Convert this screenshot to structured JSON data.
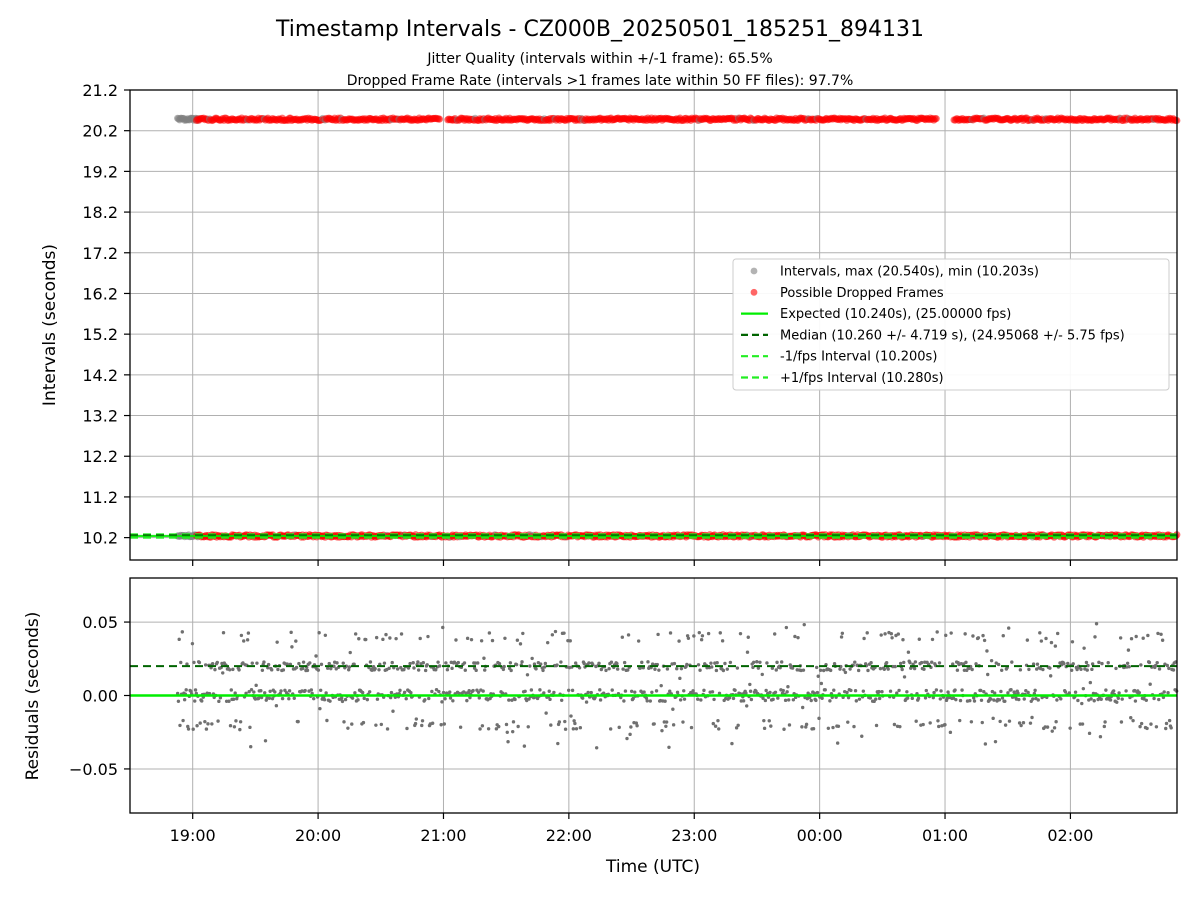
{
  "colors": {
    "interval_points": "#808080",
    "dropped_points": "#ff0000",
    "expected_line": "#00ee00",
    "median_line": "#006400",
    "fps_interval_lines": "#22ee22",
    "residual_points": "#707070",
    "grid": "#b0b0b0"
  },
  "chart_data": [
    {
      "type": "scatter",
      "title": "Timestamp Intervals - CZ000B_20250501_185251_894131",
      "subtitle_1": "Jitter Quality (intervals within +/-1 frame): 65.5%",
      "subtitle_2": "Dropped Frame Rate (intervals >1 frames late within 50 FF files): 97.7%",
      "xlabel": "",
      "ylabel": "Intervals (seconds)",
      "ylim": [
        9.65,
        21.2
      ],
      "yticks": [
        "10.2",
        "11.2",
        "12.2",
        "13.2",
        "14.2",
        "15.2",
        "16.2",
        "17.2",
        "18.2",
        "19.2",
        "20.2",
        "21.2"
      ],
      "xlim_hours": [
        18.5,
        26.85
      ],
      "grid": true,
      "legend_position": "center-right",
      "legend": [
        {
          "label": "Intervals, max (20.540s), min (10.203s)",
          "kind": "marker",
          "color": "#808080"
        },
        {
          "label": "Possible Dropped Frames",
          "kind": "marker",
          "color": "#ff0000"
        },
        {
          "label": "Expected (10.240s), (25.00000 fps)",
          "kind": "solid",
          "color": "#00ee00"
        },
        {
          "label": "Median (10.260 +/- 4.719 s), (24.95068 +/- 5.75 fps)",
          "kind": "dashed",
          "color": "#006400"
        },
        {
          "label": "-1/fps Interval (10.200s)",
          "kind": "dashed",
          "color": "#22ee22"
        },
        {
          "label": "+1/fps Interval (10.280s)",
          "kind": "dashed",
          "color": "#22ee22"
        }
      ],
      "series": [
        {
          "name": "Intervals, max (20.540s), min (10.203s)",
          "start_hour": 18.88,
          "end_hour": 26.85,
          "levels": [
            10.24,
            20.48
          ],
          "color": "#808080"
        },
        {
          "name": "Possible Dropped Frames",
          "start_hour": 19.03,
          "end_hour": 26.85,
          "levels": [
            10.24,
            20.48
          ],
          "color": "#ff0000"
        }
      ],
      "reference_lines": {
        "expected": 10.24,
        "median": 10.26,
        "minus_1_fps": 10.2,
        "plus_1_fps": 10.28
      }
    },
    {
      "type": "scatter",
      "xlabel": "Time (UTC)",
      "ylabel": "Residuals (seconds)",
      "ylim": [
        -0.08,
        0.08
      ],
      "yticks": [
        "−0.05",
        "0.00",
        "0.05"
      ],
      "xlim_hours": [
        18.5,
        26.85
      ],
      "xticks": [
        "19:00",
        "20:00",
        "21:00",
        "22:00",
        "23:00",
        "00:00",
        "01:00",
        "02:00"
      ],
      "grid": true,
      "residual_levels": [
        0.0,
        0.02,
        -0.02,
        0.04
      ],
      "residual_range": [
        -0.037,
        0.05
      ],
      "reference_lines": {
        "expected": 0.0,
        "median": 0.02
      }
    }
  ]
}
